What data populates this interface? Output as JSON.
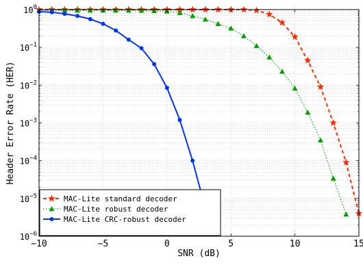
{
  "chart_data": {
    "type": "line",
    "title": "",
    "xlabel": "SNR (dB)",
    "ylabel": "Header Error Rate (HER)",
    "xlim": [
      -10,
      15
    ],
    "ylim": [
      1e-06,
      1
    ],
    "yscale": "log",
    "grid": true,
    "x_ticks": [
      -10,
      -5,
      0,
      5,
      10,
      15
    ],
    "x_tick_labels": [
      "−10",
      "−5",
      "0",
      "5",
      "10",
      "15"
    ],
    "y_ticks": [
      {
        "base": "10",
        "exp": "0"
      },
      {
        "base": "10",
        "exp": "−1"
      },
      {
        "base": "10",
        "exp": "−2"
      },
      {
        "base": "10",
        "exp": "−3"
      },
      {
        "base": "10",
        "exp": "−4"
      },
      {
        "base": "10",
        "exp": "−5"
      },
      {
        "base": "10",
        "exp": "−6"
      }
    ],
    "legend": "bottom-left",
    "series": [
      {
        "name": "MAC-Lite standard decoder",
        "color": "#ff2a00",
        "marker": "star",
        "line": "dashed",
        "points": [
          [
            -10,
            1.0
          ],
          [
            -9,
            1.0
          ],
          [
            -8,
            1.0
          ],
          [
            -7,
            1.0
          ],
          [
            -6,
            1.0
          ],
          [
            -5,
            1.0
          ],
          [
            -4,
            1.0
          ],
          [
            -3,
            1.0
          ],
          [
            -2,
            1.0
          ],
          [
            -1,
            1.0
          ],
          [
            0,
            1.0
          ],
          [
            1,
            1.0
          ],
          [
            2,
            1.0
          ],
          [
            3,
            1.0
          ],
          [
            4,
            1.0
          ],
          [
            5,
            1.0
          ],
          [
            6,
            1.0
          ],
          [
            7,
            0.95
          ],
          [
            8,
            0.75
          ],
          [
            9,
            0.45
          ],
          [
            10,
            0.19
          ],
          [
            11,
            0.045
          ],
          [
            12,
            0.009
          ],
          [
            13,
            0.001
          ],
          [
            14,
            9e-05
          ],
          [
            15,
            4e-06
          ]
        ]
      },
      {
        "name": "MAC-Lite robust decoder",
        "color": "#00a000",
        "marker": "triangle",
        "line": "dotted",
        "points": [
          [
            -10,
            0.95
          ],
          [
            -9,
            0.95
          ],
          [
            -8,
            0.95
          ],
          [
            -7,
            0.95
          ],
          [
            -6,
            0.95
          ],
          [
            -5,
            0.95
          ],
          [
            -4,
            0.95
          ],
          [
            -3,
            0.95
          ],
          [
            -2,
            0.94
          ],
          [
            -1,
            0.93
          ],
          [
            0,
            0.9
          ],
          [
            1,
            0.82
          ],
          [
            2,
            0.68
          ],
          [
            3,
            0.55
          ],
          [
            4,
            0.42
          ],
          [
            5,
            0.32
          ],
          [
            6,
            0.2
          ],
          [
            7,
            0.11
          ],
          [
            8,
            0.055
          ],
          [
            9,
            0.023
          ],
          [
            10,
            0.0082
          ],
          [
            11,
            0.0019
          ],
          [
            12,
            0.00035
          ],
          [
            13,
            3.4e-05
          ],
          [
            14,
            3.8e-06
          ]
        ]
      },
      {
        "name": "MAC-Lite CRC-robust decoder",
        "color": "#0033ff",
        "marker": "circle",
        "line": "solid",
        "points": [
          [
            -10,
            0.88
          ],
          [
            -9,
            0.85
          ],
          [
            -8,
            0.77
          ],
          [
            -7,
            0.68
          ],
          [
            -6,
            0.56
          ],
          [
            -5,
            0.42
          ],
          [
            -4,
            0.28
          ],
          [
            -3,
            0.16
          ],
          [
            -2,
            0.095
          ],
          [
            -1,
            0.036
          ],
          [
            0,
            0.0085
          ],
          [
            1,
            0.0012
          ],
          [
            2,
            0.0001
          ],
          [
            3,
            5.5e-06
          ]
        ]
      }
    ]
  }
}
